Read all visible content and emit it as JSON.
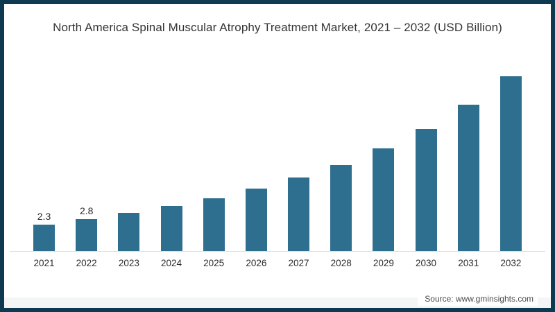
{
  "frame": {
    "border_color": "#0d3a50",
    "background": "#ffffff"
  },
  "title": "North America Spinal Muscular Atrophy Treatment Market, 2021 – 2032 (USD Billion)",
  "source": "Source: www.gminsights.com",
  "chart_data": {
    "type": "bar",
    "title": "North America Spinal Muscular Atrophy Treatment Market, 2021 – 2032 (USD Billion)",
    "categories": [
      "2021",
      "2022",
      "2023",
      "2024",
      "2025",
      "2026",
      "2027",
      "2028",
      "2029",
      "2030",
      "2031",
      "2032"
    ],
    "values": [
      2.3,
      2.8,
      3.3,
      3.9,
      4.6,
      5.4,
      6.4,
      7.5,
      8.9,
      10.6,
      12.7,
      15.2
    ],
    "bar_labels": [
      "2.3",
      "2.8",
      "",
      "",
      "",
      "",
      "",
      "",
      "",
      "",
      "",
      ""
    ],
    "bar_color": "#2e6f90",
    "xlabel": "",
    "ylabel": "USD Billion",
    "ylim": [
      0,
      16
    ],
    "grid": false,
    "legend": "none",
    "source_note": "Source: www.gminsights.com"
  }
}
